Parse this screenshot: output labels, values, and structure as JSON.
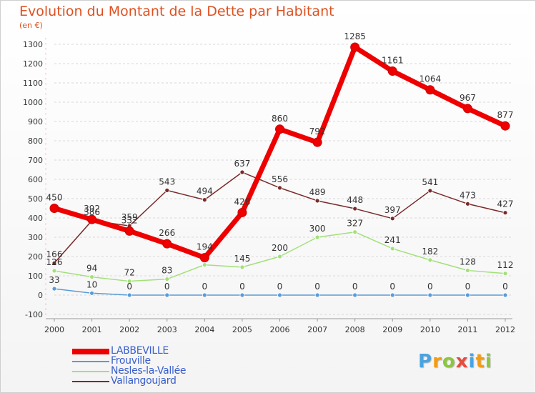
{
  "title": "Evolution du Montant de la Dette par Habitant",
  "subtitle": "(en €)",
  "logo": {
    "text": "Proxiti",
    "letters": [
      {
        "ch": "P",
        "color": "#4aa3df"
      },
      {
        "ch": "r",
        "color": "#f39c12"
      },
      {
        "ch": "o",
        "color": "#8cc63f"
      },
      {
        "ch": "x",
        "color": "#e74c3c"
      },
      {
        "ch": "i",
        "color": "#4aa3df"
      },
      {
        "ch": "t",
        "color": "#f39c12"
      },
      {
        "ch": "i",
        "color": "#8cc63f"
      }
    ]
  },
  "chart_data": {
    "type": "line",
    "title": "Evolution du Montant de la Dette par Habitant",
    "ylabel": "(en €)",
    "xlabel": "",
    "x": [
      "2000",
      "2001",
      "2002",
      "2003",
      "2004",
      "2005",
      "2006",
      "2007",
      "2008",
      "2009",
      "2010",
      "2011",
      "2012"
    ],
    "ylim": [
      -100,
      1300
    ],
    "yticks": [
      -100,
      0,
      100,
      200,
      300,
      400,
      500,
      600,
      700,
      800,
      900,
      1000,
      1100,
      1200,
      1300
    ],
    "grid": "horizontal-dashed",
    "legend_position": "bottom-left",
    "series": [
      {
        "name": "LABBEVILLE",
        "color": "#ee0000",
        "width": 7,
        "marker": 6,
        "values": [
          450,
          392,
          332,
          266,
          194,
          428,
          860,
          792,
          1285,
          1161,
          1064,
          967,
          877
        ]
      },
      {
        "name": "Frouville",
        "color": "#5b9bd5",
        "width": 1.5,
        "marker": 3,
        "values": [
          33,
          10,
          0,
          0,
          0,
          0,
          0,
          0,
          0,
          0,
          0,
          0,
          0
        ]
      },
      {
        "name": "Nesles-la-Vallée",
        "color": "#a3e07a",
        "width": 1.5,
        "marker": 3,
        "values": [
          126,
          94,
          72,
          83,
          157,
          145,
          200,
          300,
          327,
          241,
          182,
          128,
          112
        ]
      },
      {
        "name": "Vallangoujard",
        "color": "#7a2a2a",
        "width": 1.5,
        "marker": 3,
        "values": [
          166,
          386,
          359,
          543,
          494,
          637,
          556,
          489,
          448,
          397,
          541,
          473,
          427
        ]
      }
    ],
    "data_labels": [
      {
        "series": 0,
        "labels": [
          "450",
          "392",
          "332",
          "266",
          "194",
          "428",
          "860",
          "792",
          "1285",
          "1161",
          "1064",
          "967",
          "877"
        ]
      },
      {
        "series": 1,
        "labels": [
          "33",
          "10",
          "0",
          "0",
          "0",
          "0",
          "0",
          "0",
          "0",
          "0",
          "0",
          "0",
          "0"
        ]
      },
      {
        "series": 2,
        "labels": [
          "126",
          "94",
          "72",
          "83",
          "",
          "145",
          "200",
          "300",
          "327",
          "241",
          "182",
          "128",
          "112"
        ]
      },
      {
        "series": 3,
        "labels": [
          "166",
          "386",
          "359",
          "543",
          "494",
          "637",
          "556",
          "489",
          "448",
          "397",
          "541",
          "473",
          "427"
        ]
      }
    ]
  }
}
